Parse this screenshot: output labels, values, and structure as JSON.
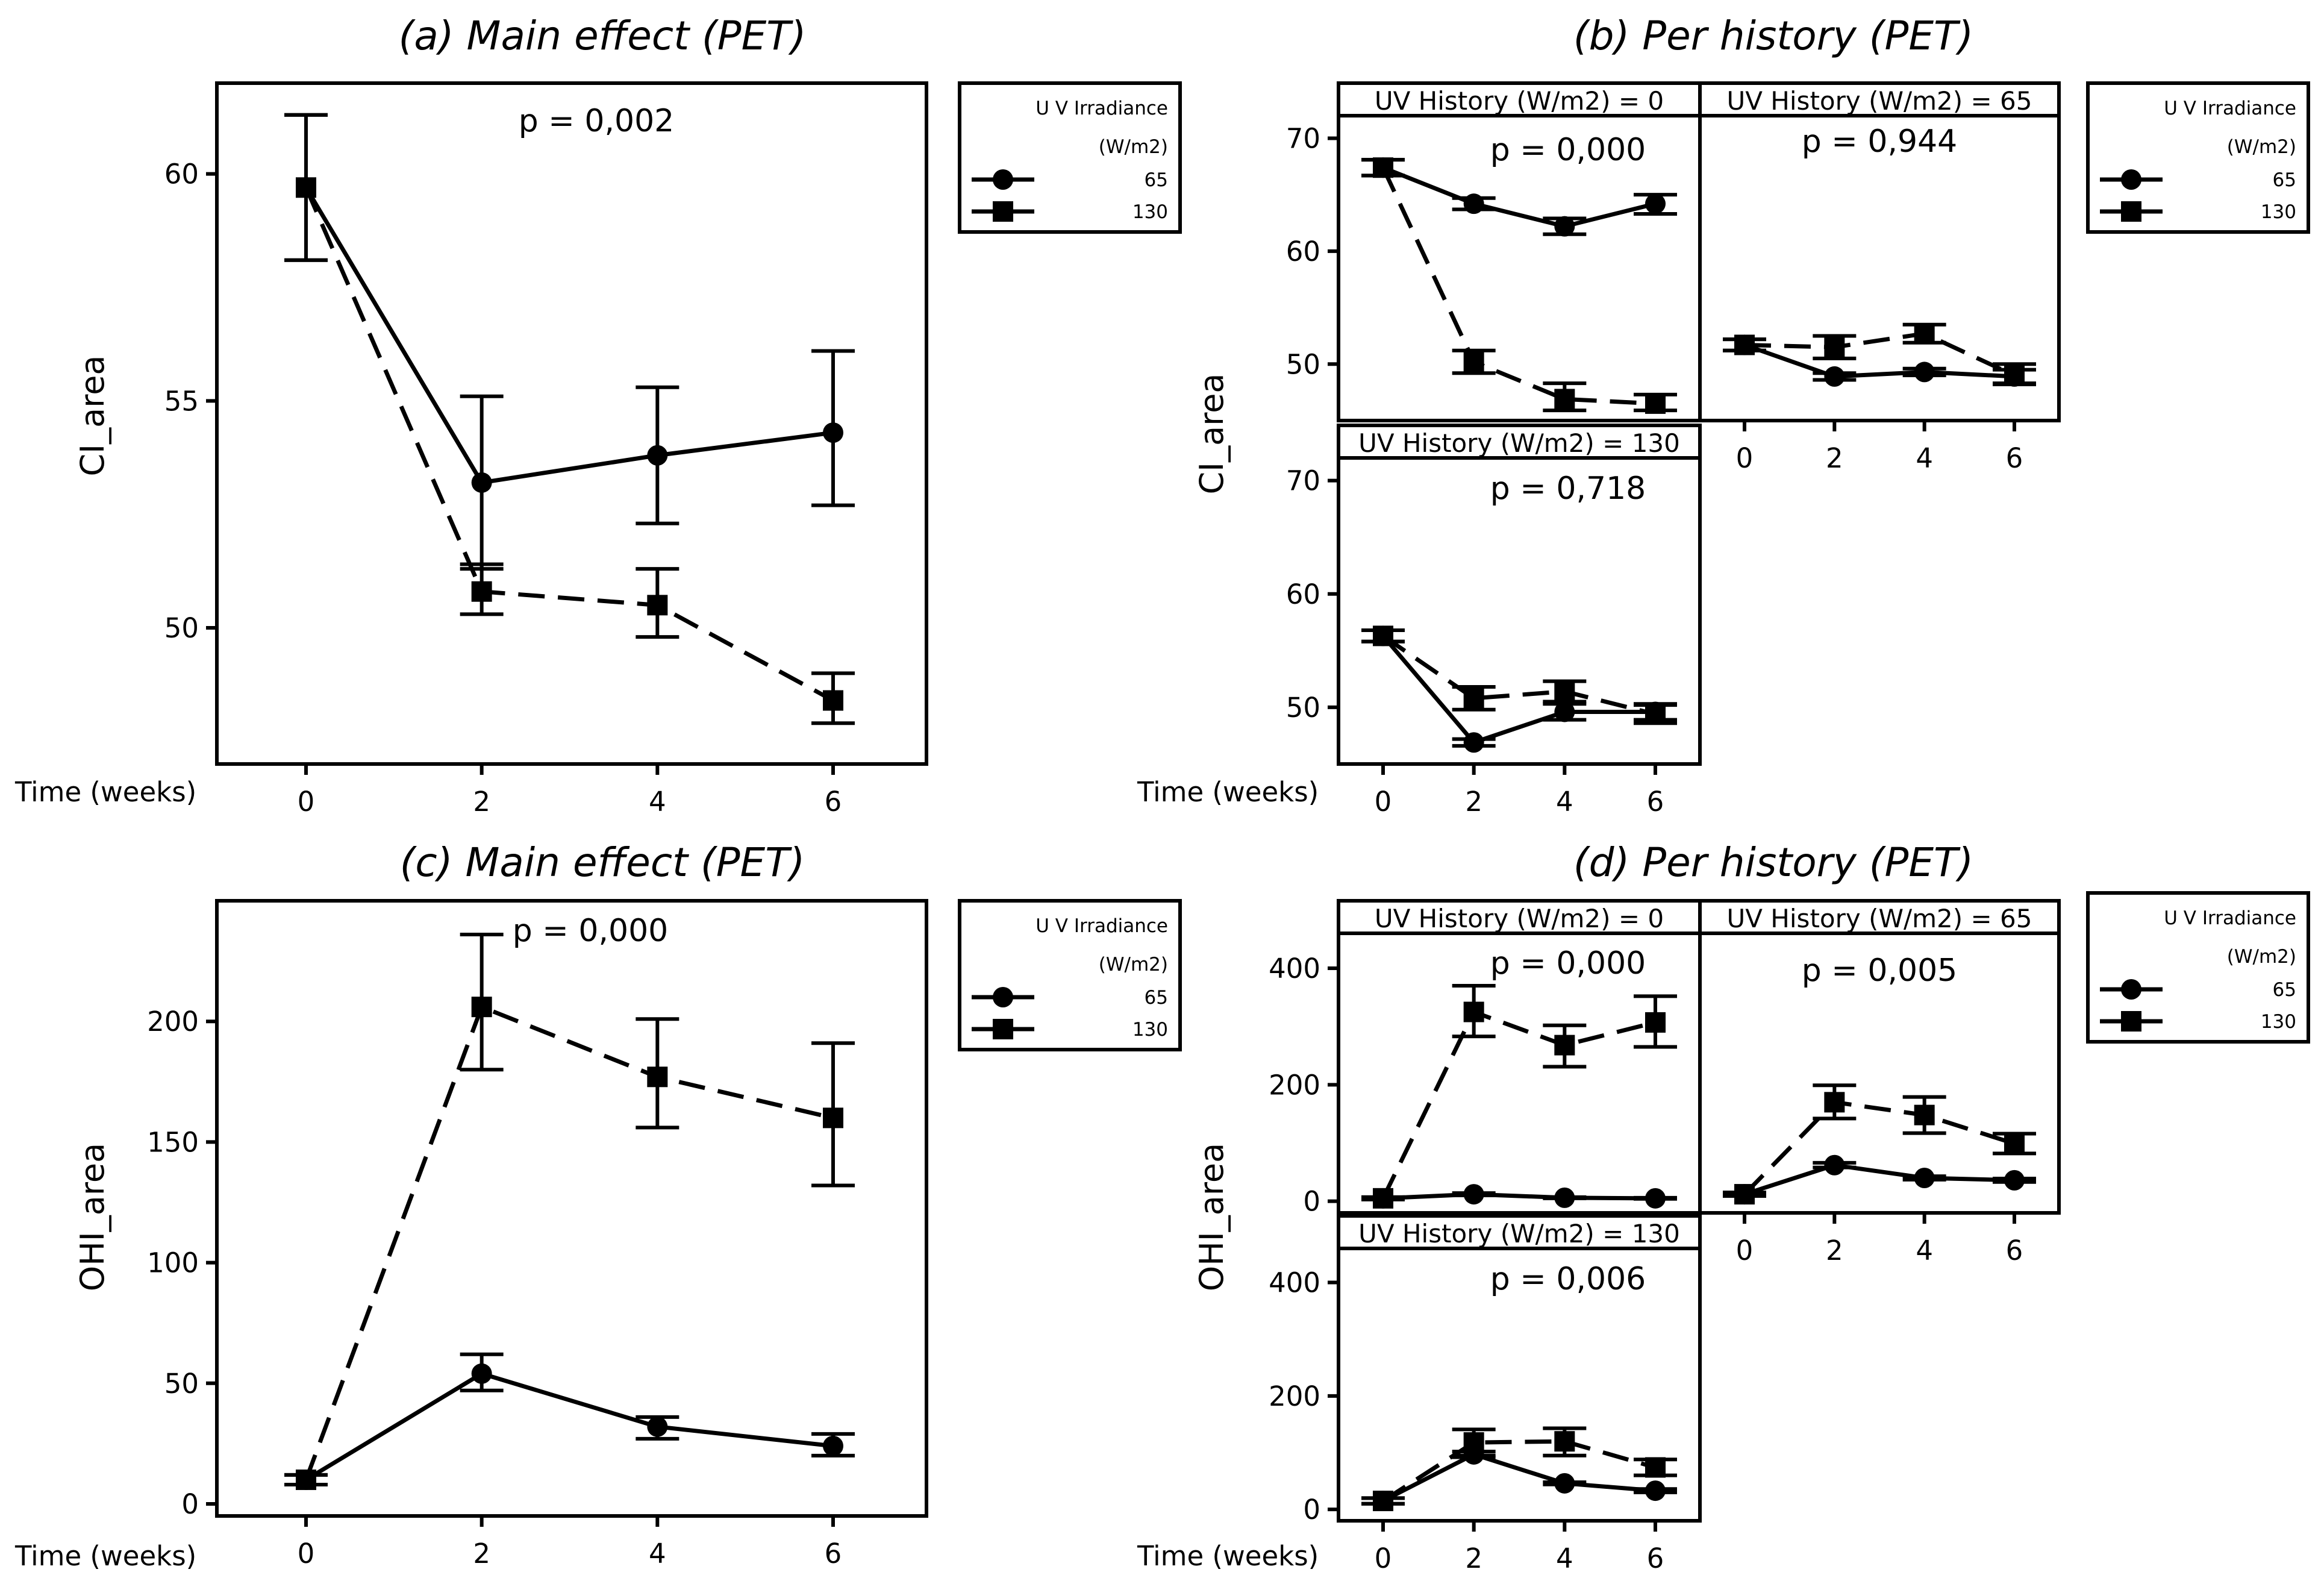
{
  "figure": {
    "legend": {
      "title_line1": "U V Irradiance",
      "title_line2": "(W/m2)",
      "series": [
        "65",
        "130"
      ]
    },
    "x_axis_label": "Time (weeks)"
  },
  "chart_data": [
    {
      "type": "line",
      "title": "(a)  Main effect (PET)",
      "xlabel": "Time (weeks)",
      "ylabel": "CI_area",
      "x": [
        0,
        2,
        4,
        6
      ],
      "x_ticks": [
        "0",
        "2",
        "4",
        "6"
      ],
      "ylim": [
        47.0,
        62.0
      ],
      "y_ticks": [
        50,
        55,
        60
      ],
      "p_value": "p = 0,002",
      "series": [
        {
          "name": "65",
          "marker": "circle",
          "style": "solid",
          "values": [
            59.7,
            53.2,
            53.8,
            54.3
          ],
          "lower": [
            58.1,
            51.3,
            52.3,
            52.7
          ],
          "upper": [
            61.3,
            55.1,
            55.3,
            56.1
          ]
        },
        {
          "name": "130",
          "marker": "square",
          "style": "dashed",
          "values": [
            59.7,
            50.8,
            50.5,
            48.4
          ],
          "lower": [
            58.1,
            50.3,
            49.8,
            47.9
          ],
          "upper": [
            61.3,
            51.4,
            51.3,
            49.0
          ]
        }
      ]
    },
    {
      "type": "line",
      "title": "(b)  Per history (PET)",
      "xlabel": "Time (weeks)",
      "ylabel": "CI_area",
      "x": [
        0,
        2,
        4,
        6
      ],
      "x_ticks": [
        "0",
        "2",
        "4",
        "6"
      ],
      "ylim": [
        45,
        72
      ],
      "y_ticks": [
        50,
        60,
        70
      ],
      "panels": [
        {
          "strip": "UV History (W/m2) = 0",
          "p_value": "p = 0,000",
          "series": [
            {
              "name": "65",
              "values": [
                67.4,
                64.2,
                62.2,
                64.2
              ],
              "lower": [
                66.7,
                63.7,
                61.5,
                63.3
              ],
              "upper": [
                68.1,
                64.7,
                62.9,
                65.0
              ]
            },
            {
              "name": "130",
              "values": [
                67.4,
                50.2,
                46.9,
                46.5
              ],
              "lower": [
                66.7,
                49.2,
                45.9,
                45.9
              ],
              "upper": [
                68.1,
                51.2,
                48.3,
                47.3
              ]
            }
          ]
        },
        {
          "strip": "UV History (W/m2) = 65",
          "p_value": "p = 0,944",
          "series": [
            {
              "name": "65",
              "values": [
                51.7,
                48.9,
                49.3,
                48.9
              ],
              "lower": [
                51.2,
                48.6,
                49.0,
                48.3
              ],
              "upper": [
                52.2,
                49.2,
                49.6,
                49.5
              ]
            },
            {
              "name": "130",
              "values": [
                51.7,
                51.5,
                52.7,
                49.0
              ],
              "lower": [
                51.2,
                50.5,
                51.9,
                48.2
              ],
              "upper": [
                52.2,
                52.5,
                53.5,
                50.0
              ]
            }
          ]
        },
        {
          "strip": "UV History (W/m2) = 130",
          "p_value": "p = 0,718",
          "series": [
            {
              "name": "65",
              "values": [
                56.3,
                46.9,
                49.6,
                49.6
              ],
              "lower": [
                55.8,
                46.6,
                48.9,
                48.9
              ],
              "upper": [
                56.8,
                47.2,
                50.3,
                50.3
              ]
            },
            {
              "name": "130",
              "values": [
                56.3,
                50.8,
                51.4,
                49.4
              ],
              "lower": [
                55.8,
                49.8,
                50.5,
                48.6
              ],
              "upper": [
                56.8,
                51.8,
                52.3,
                50.2
              ]
            }
          ]
        }
      ]
    },
    {
      "type": "line",
      "title": "(c)  Main effect (PET)",
      "xlabel": "Time (weeks)",
      "ylabel": "OHI_area",
      "x": [
        0,
        2,
        4,
        6
      ],
      "x_ticks": [
        "0",
        "2",
        "4",
        "6"
      ],
      "ylim": [
        -5,
        250
      ],
      "y_ticks": [
        0,
        50,
        100,
        150,
        200
      ],
      "p_value": "p = 0,000",
      "series": [
        {
          "name": "65",
          "marker": "circle",
          "style": "solid",
          "values": [
            10,
            54,
            32,
            24
          ],
          "lower": [
            8,
            47,
            27,
            20
          ],
          "upper": [
            12,
            62,
            36,
            29
          ]
        },
        {
          "name": "130",
          "marker": "square",
          "style": "dashed",
          "values": [
            10,
            206,
            177,
            160
          ],
          "lower": [
            8,
            180,
            156,
            132
          ],
          "upper": [
            12,
            236,
            201,
            191
          ]
        }
      ]
    },
    {
      "type": "line",
      "title": "(d)  Per history (PET)",
      "xlabel": "Time (weeks)",
      "ylabel": "OHI_area",
      "x": [
        0,
        2,
        4,
        6
      ],
      "x_ticks": [
        "0",
        "2",
        "4",
        "6"
      ],
      "ylim": [
        -20,
        460
      ],
      "y_ticks": [
        0,
        200,
        400
      ],
      "panels": [
        {
          "strip": "UV History (W/m2) = 0",
          "p_value": "p = 0,000",
          "series": [
            {
              "name": "65",
              "values": [
                5,
                12,
                6,
                5
              ],
              "lower": [
                3,
                10,
                5,
                4
              ],
              "upper": [
                7,
                14,
                7,
                6
              ]
            },
            {
              "name": "130",
              "values": [
                5,
                325,
                268,
                307
              ],
              "lower": [
                3,
                283,
                231,
                265
              ],
              "upper": [
                7,
                370,
                302,
                352
              ]
            }
          ]
        },
        {
          "strip": "UV History (W/m2) = 65",
          "p_value": "p = 0,005",
          "series": [
            {
              "name": "65",
              "values": [
                12,
                62,
                40,
                36
              ],
              "lower": [
                9,
                58,
                37,
                33
              ],
              "upper": [
                15,
                66,
                43,
                39
              ]
            },
            {
              "name": "130",
              "values": [
                12,
                170,
                148,
                99
              ],
              "lower": [
                9,
                142,
                117,
                82
              ],
              "upper": [
                15,
                199,
                179,
                116
              ]
            }
          ]
        },
        {
          "strip": "UV History (W/m2) = 130",
          "p_value": "p = 0,006",
          "series": [
            {
              "name": "65",
              "values": [
                15,
                97,
                46,
                33
              ],
              "lower": [
                10,
                92,
                44,
                30
              ],
              "upper": [
                20,
                102,
                48,
                36
              ]
            },
            {
              "name": "130",
              "values": [
                15,
                118,
                120,
                74
              ],
              "lower": [
                10,
                95,
                95,
                60
              ],
              "upper": [
                20,
                141,
                143,
                88
              ]
            }
          ]
        }
      ]
    }
  ]
}
